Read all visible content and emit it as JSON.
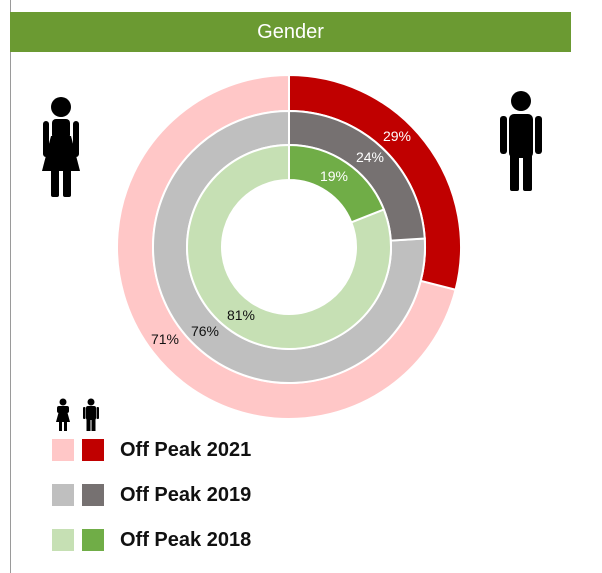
{
  "header": {
    "title": "Gender",
    "color": "#6b9a32"
  },
  "icons": {
    "female": "female-person-icon",
    "male": "male-person-icon"
  },
  "chart_data": {
    "type": "doughnut",
    "title": "Gender",
    "categories": [
      "Female",
      "Male"
    ],
    "series": [
      {
        "name": "Off Peak 2021",
        "values": [
          71,
          29
        ],
        "colors": [
          "#ffc7c7",
          "#c00000"
        ],
        "labels": [
          "71%",
          "29%"
        ]
      },
      {
        "name": "Off Peak 2019",
        "values": [
          76,
          24
        ],
        "colors": [
          "#bfbfbf",
          "#767171"
        ],
        "labels": [
          "76%",
          "24%"
        ]
      },
      {
        "name": "Off Peak 2018",
        "values": [
          81,
          19
        ],
        "colors": [
          "#c6e0b4",
          "#70ad47"
        ],
        "labels": [
          "81%",
          "19%"
        ]
      }
    ],
    "legend": {
      "position": "bottom-left"
    }
  }
}
